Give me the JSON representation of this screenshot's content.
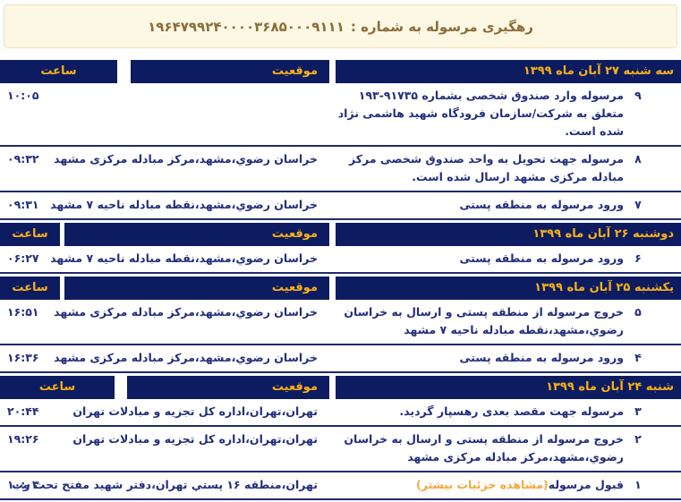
{
  "banner": {
    "label": "رهگیری مرسوله به شماره :",
    "tracking_number": "۱۹۶۴۷۹۹۲۴۰۰۰۰۳۶۸۵۰۰۰۹۱۱۱"
  },
  "table": {
    "columns": {
      "time": "ساعت",
      "location": "موقعیت"
    },
    "sections": [
      {
        "date": "سه شنبه ۲۷ آبان ماه ۱۳۹۹",
        "rows": [
          {
            "num": "۹",
            "status": "مرسوله وارد صندوق شخصی بشماره ۹۱۷۳۵-۱۹۳ متعلق به شرکت/سازمان فرودگاه شهید هاشمی نژاد شده است.",
            "location": "",
            "time": "۱۰:۰۵"
          },
          {
            "num": "۸",
            "status": "مرسوله جهت تحویل به واحد صندوق شخصی مرکز مبادله مرکزی مشهد ارسال شده است.",
            "location": "خراسان رضوي،مشهد،مرکز مبادله مرکزی مشهد",
            "time": "۰۹:۳۲"
          },
          {
            "num": "۷",
            "status": "ورود مرسوله به منطقه پستی",
            "location": "خراسان رضوي،مشهد،نقطه مبادله ناحیه ۷ مشهد",
            "time": "۰۹:۳۱"
          }
        ]
      },
      {
        "date": "دوشنبه ۲۶ آبان ماه ۱۳۹۹",
        "rows": [
          {
            "num": "۶",
            "status": "ورود مرسوله به منطقه پستی",
            "location": "خراسان رضوي،مشهد،نقطه مبادله ناحیه ۷ مشهد",
            "time": "۰۶:۲۷"
          }
        ]
      },
      {
        "date": "یکشنبه ۲۵ آبان ماه ۱۳۹۹",
        "rows": [
          {
            "num": "۵",
            "status": "خروج مرسوله از منطقه پستی و ارسال به خراسان رضوي،مشهد،نقطه مبادله ناحیه ۷ مشهد",
            "location": "خراسان رضوي،مشهد،مرکز مبادله مرکزی مشهد",
            "time": "۱۶:۵۱"
          },
          {
            "num": "۴",
            "status": "ورود مرسوله به منطقه پستی",
            "location": "خراسان رضوي،مشهد،مرکز مبادله مرکزی مشهد",
            "time": "۱۶:۳۶"
          }
        ]
      },
      {
        "date": "شنبه ۲۴ آبان ماه ۱۳۹۹",
        "rows": [
          {
            "num": "۳",
            "status": "مرسوله جهت مقصد بعدی رهسپار گردید.",
            "location": "تهران،تهران،اداره کل تجزیه و مبادلات تهران",
            "time": "۲۰:۴۴"
          },
          {
            "num": "۲",
            "status": "خروج مرسوله از منطقه پستی و ارسال به خراسان رضوي،مشهد،مرکز مبادله مرکزی مشهد",
            "location": "تهران،تهران،اداره کل تجزیه و مبادلات تهران",
            "time": "۱۹:۲۶"
          },
          {
            "num": "۱",
            "status": "قبول مرسوله",
            "status_link": "(مشاهده جزئیات بیشتر)",
            "location": "تهران،منطقه ۱۶ پستي تهران،دفتر شهید مفتح تحت وب",
            "time": "۱۰:۰۳"
          }
        ]
      }
    ]
  },
  "colors": {
    "header_bg": "#0d1c61",
    "header_text": "#f9b115",
    "row_text": "#232f7d",
    "row_divider": "#1e2b6f",
    "link": "#f5a83a",
    "banner_bg": "#fcf8e3",
    "banner_border": "#f0e3c0",
    "banner_text": "#8a6d3b"
  }
}
